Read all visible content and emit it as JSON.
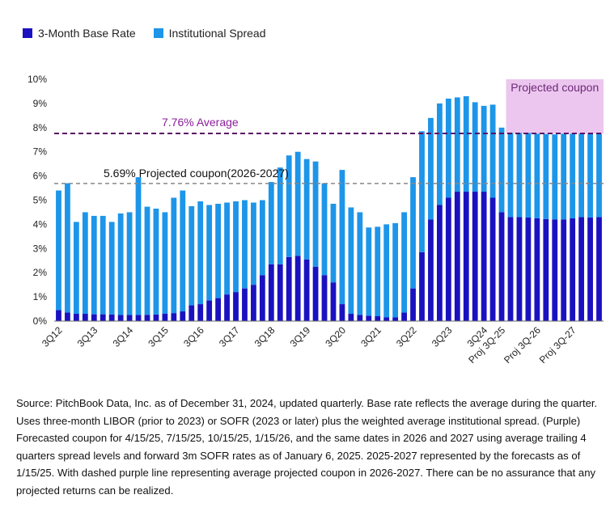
{
  "colors": {
    "base": "#1a12c0",
    "spread": "#1d95e9",
    "average_line": "#5b1066",
    "projected_line": "#888888",
    "projected_shade": "#ecc6ef",
    "projected_label": "#6b2a76"
  },
  "legend": [
    {
      "name": "3-Month Base Rate",
      "color": "#1a12c0"
    },
    {
      "name": "Institutional Spread",
      "color": "#1d95e9"
    }
  ],
  "chart_data": {
    "type": "bar",
    "stacked": true,
    "ylim": [
      0,
      10
    ],
    "yticks": [
      "0%",
      "1%",
      "2%",
      "3%",
      "4%",
      "5%",
      "6%",
      "7%",
      "8%",
      "9%",
      "10%"
    ],
    "grid": false,
    "xlabel": "",
    "ylabel": "",
    "x_tick_labels": [
      {
        "index": 0,
        "label": "3Q12"
      },
      {
        "index": 4,
        "label": "3Q13"
      },
      {
        "index": 8,
        "label": "3Q14"
      },
      {
        "index": 12,
        "label": "3Q15"
      },
      {
        "index": 16,
        "label": "3Q16"
      },
      {
        "index": 20,
        "label": "3Q17"
      },
      {
        "index": 24,
        "label": "3Q18"
      },
      {
        "index": 28,
        "label": "3Q19"
      },
      {
        "index": 32,
        "label": "3Q20"
      },
      {
        "index": 36,
        "label": "3Q21"
      },
      {
        "index": 40,
        "label": "3Q22"
      },
      {
        "index": 44,
        "label": "3Q23"
      },
      {
        "index": 48,
        "label": "3Q24"
      },
      {
        "index": 50,
        "label": "Proj 3Q-25"
      },
      {
        "index": 54,
        "label": "Proj 3Q-26"
      },
      {
        "index": 58,
        "label": "Proj 3Q-27"
      }
    ],
    "series": [
      {
        "name": "3-Month Base Rate",
        "values": [
          0.45,
          0.35,
          0.3,
          0.3,
          0.28,
          0.28,
          0.27,
          0.25,
          0.25,
          0.25,
          0.26,
          0.27,
          0.3,
          0.33,
          0.4,
          0.65,
          0.7,
          0.85,
          0.95,
          1.1,
          1.2,
          1.35,
          1.5,
          1.9,
          2.35,
          2.35,
          2.65,
          2.7,
          2.55,
          2.25,
          1.9,
          1.6,
          0.7,
          0.3,
          0.25,
          0.22,
          0.2,
          0.15,
          0.15,
          0.35,
          1.35,
          2.85,
          4.2,
          4.8,
          5.1,
          5.35,
          5.35,
          5.35,
          5.35,
          5.1,
          4.5,
          4.3,
          4.3,
          4.28,
          4.25,
          4.22,
          4.2,
          4.2,
          4.25,
          4.3,
          4.28,
          4.3
        ]
      },
      {
        "name": "Institutional Spread",
        "values": [
          4.95,
          5.35,
          3.8,
          4.2,
          4.07,
          4.07,
          3.83,
          4.2,
          4.25,
          5.7,
          4.47,
          4.38,
          4.2,
          4.77,
          5.0,
          4.1,
          4.25,
          3.95,
          3.9,
          3.8,
          3.75,
          3.65,
          3.4,
          3.1,
          3.4,
          4.0,
          4.2,
          4.3,
          4.15,
          4.35,
          3.8,
          3.25,
          5.55,
          4.4,
          4.25,
          3.65,
          3.7,
          3.85,
          3.9,
          4.15,
          4.6,
          5.0,
          4.2,
          4.2,
          4.1,
          3.9,
          3.95,
          3.7,
          3.55,
          3.85,
          3.5,
          3.48,
          3.48,
          3.5,
          3.5,
          3.52,
          3.52,
          3.55,
          3.5,
          3.46,
          3.48,
          3.46
        ]
      }
    ],
    "reference_lines": [
      {
        "value": 7.76,
        "label": "7.76% Average",
        "style": "dashed purple",
        "start_index": 0
      },
      {
        "value": 5.69,
        "label": "5.69% Projected coupon(2026-2027)",
        "style": "dashed gray",
        "start_index": 0
      }
    ],
    "shaded_region": {
      "start_index": 51,
      "end_index": 61,
      "label": "Projected coupon"
    }
  },
  "source_note": "Source: PitchBook Data, Inc. as of December 31, 2024, updated quarterly. Base rate reflects the average during the quarter. Uses three-month LIBOR (prior to 2023) or SOFR (2023 or later) plus the weighted average institutional spread. (Purple) Forecasted coupon for 4/15/25, 7/15/25, 10/15/25, 1/15/26, and the same dates in 2026 and 2027 using average trailing 4 quarters spread levels and forward 3m SOFR rates as of January 6, 2025. 2025-2027 represented by the forecasts as of 1/15/25. With dashed purple line representing average projected coupon in 2026-2027. There can be no assurance that any projected returns can be realized."
}
